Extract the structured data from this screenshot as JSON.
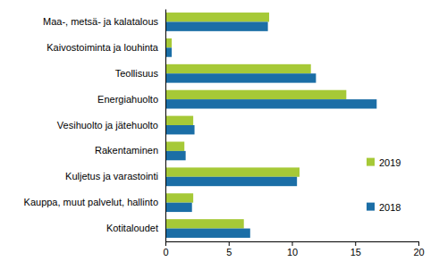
{
  "chart_data": {
    "type": "bar",
    "orientation": "horizontal",
    "legend": "right",
    "grid": false,
    "categories": [
      "Maa-, metsä- ja kalatalous",
      "Kaivostoiminta ja louhinta",
      "Teollisuus",
      "Energiahuolto",
      "Vesihuolto ja jätehuolto",
      "Rakentaminen",
      "Kuljetus ja varastointi",
      "Kauppa, muut palvelut, hallinto",
      "Kotitaloudet"
    ],
    "series": [
      {
        "name": "2019",
        "color": "#a6c937",
        "values": [
          8.2,
          0.5,
          11.5,
          14.3,
          2.2,
          1.5,
          10.6,
          2.2,
          6.2
        ]
      },
      {
        "name": "2018",
        "color": "#1b6ea6",
        "values": [
          8.1,
          0.5,
          11.9,
          16.7,
          2.3,
          1.6,
          10.4,
          2.1,
          6.7
        ]
      }
    ],
    "xlim": [
      0,
      20
    ],
    "xticks": [
      0,
      5,
      10,
      15,
      20
    ]
  }
}
